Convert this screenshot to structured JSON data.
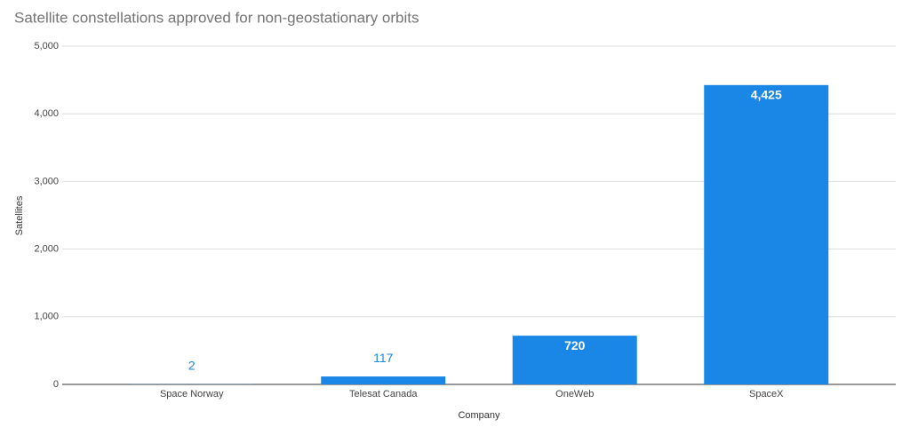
{
  "chart_data": {
    "type": "bar",
    "title": "Satellite constellations approved for non-geostationary orbits",
    "x_label": "Company",
    "y_label": "Satellites",
    "categories": [
      "Space Norway",
      "Telesat Canada",
      "OneWeb",
      "SpaceX"
    ],
    "values": [
      2,
      117,
      720,
      4425
    ],
    "value_labels": [
      "2",
      "117",
      "720",
      "4,425"
    ],
    "color": "#1a87e6",
    "ylim": [
      0,
      5000
    ],
    "yticks": [
      0,
      {
        "value": 1000,
        "label": "1,000"
      },
      {
        "value": 2000,
        "label": "2,000"
      },
      {
        "value": 3000,
        "label": "3,000"
      },
      {
        "value": 4000,
        "label": "4,000"
      },
      {
        "value": 5000,
        "label": "5,000"
      }
    ],
    "grid": true
  }
}
